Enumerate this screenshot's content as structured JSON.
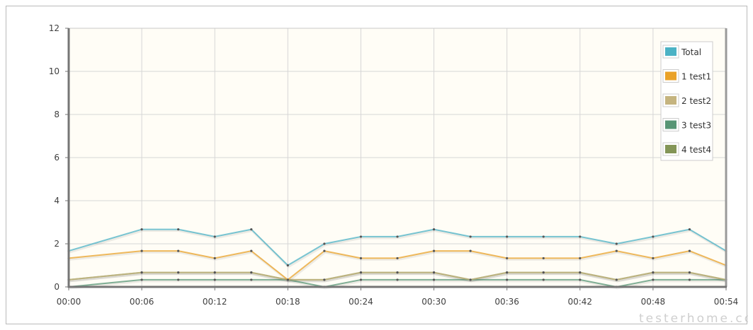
{
  "chart_data": {
    "type": "line",
    "title": "",
    "xlabel": "",
    "ylabel": "",
    "ylim": [
      0,
      12
    ],
    "yticks": [
      0,
      2,
      4,
      6,
      8,
      10,
      12
    ],
    "xticks": [
      "00:00",
      "00:06",
      "00:12",
      "00:18",
      "00:24",
      "00:30",
      "00:36",
      "00:42",
      "00:48",
      "00:54"
    ],
    "x_minutes": [
      0,
      6,
      9,
      12,
      15,
      18,
      21,
      24,
      27,
      30,
      33,
      36,
      39,
      42,
      45,
      48,
      51,
      54
    ],
    "grid": true,
    "legend_position": "top-right",
    "series": [
      {
        "name": "Total",
        "color": "#4bb2c5",
        "values": [
          1.67,
          2.67,
          2.67,
          2.33,
          2.67,
          1.0,
          2.0,
          2.33,
          2.33,
          2.67,
          2.33,
          2.33,
          2.33,
          2.33,
          2.0,
          2.33,
          2.67,
          1.67
        ]
      },
      {
        "name": "1 test1",
        "color": "#eaa228",
        "values": [
          1.33,
          1.67,
          1.67,
          1.33,
          1.67,
          0.33,
          1.67,
          1.33,
          1.33,
          1.67,
          1.67,
          1.33,
          1.33,
          1.33,
          1.67,
          1.33,
          1.67,
          1.0
        ]
      },
      {
        "name": "2 test2",
        "color": "#c5b47f",
        "values": [
          0.33,
          0.67,
          0.67,
          0.67,
          0.67,
          0.33,
          0.33,
          0.67,
          0.67,
          0.67,
          0.33,
          0.67,
          0.67,
          0.67,
          0.33,
          0.67,
          0.67,
          0.33
        ]
      },
      {
        "name": "3 test3",
        "color": "#579575",
        "values": [
          0.0,
          0.33,
          0.33,
          0.33,
          0.33,
          0.33,
          0.0,
          0.33,
          0.33,
          0.33,
          0.33,
          0.33,
          0.33,
          0.33,
          0.0,
          0.33,
          0.33,
          0.33
        ]
      },
      {
        "name": "4 test4",
        "color": "#839557",
        "values": [
          0.33,
          0.67,
          0.67,
          0.67,
          0.67,
          0.33,
          0.33,
          0.67,
          0.67,
          0.67,
          0.33,
          0.67,
          0.67,
          0.67,
          0.33,
          0.67,
          0.67,
          0.33
        ]
      }
    ]
  },
  "colors": {
    "plot_background": "#fffdf6",
    "grid": "#d6d6d6",
    "axis": "#757575"
  },
  "watermark": "testerhome.com"
}
